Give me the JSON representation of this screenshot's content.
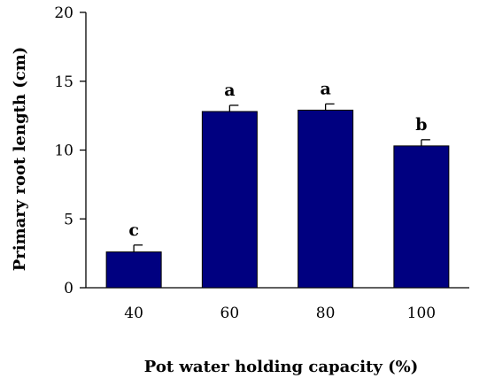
{
  "chart_data": {
    "type": "bar",
    "title": "",
    "xlabel": "Pot water holding capacity (%)",
    "ylabel": "Primary root length (cm)",
    "categories": [
      "40",
      "60",
      "80",
      "100"
    ],
    "values": [
      2.6,
      12.8,
      12.9,
      10.3
    ],
    "error_bars": [
      0.5,
      0.45,
      0.45,
      0.45
    ],
    "significance_letters": [
      "c",
      "a",
      "a",
      "b"
    ],
    "ylim": [
      0,
      20
    ],
    "yticks": [
      "0",
      "5",
      "10",
      "15",
      "20"
    ],
    "grid": false,
    "legend": "none",
    "bar_color": "#000080"
  }
}
